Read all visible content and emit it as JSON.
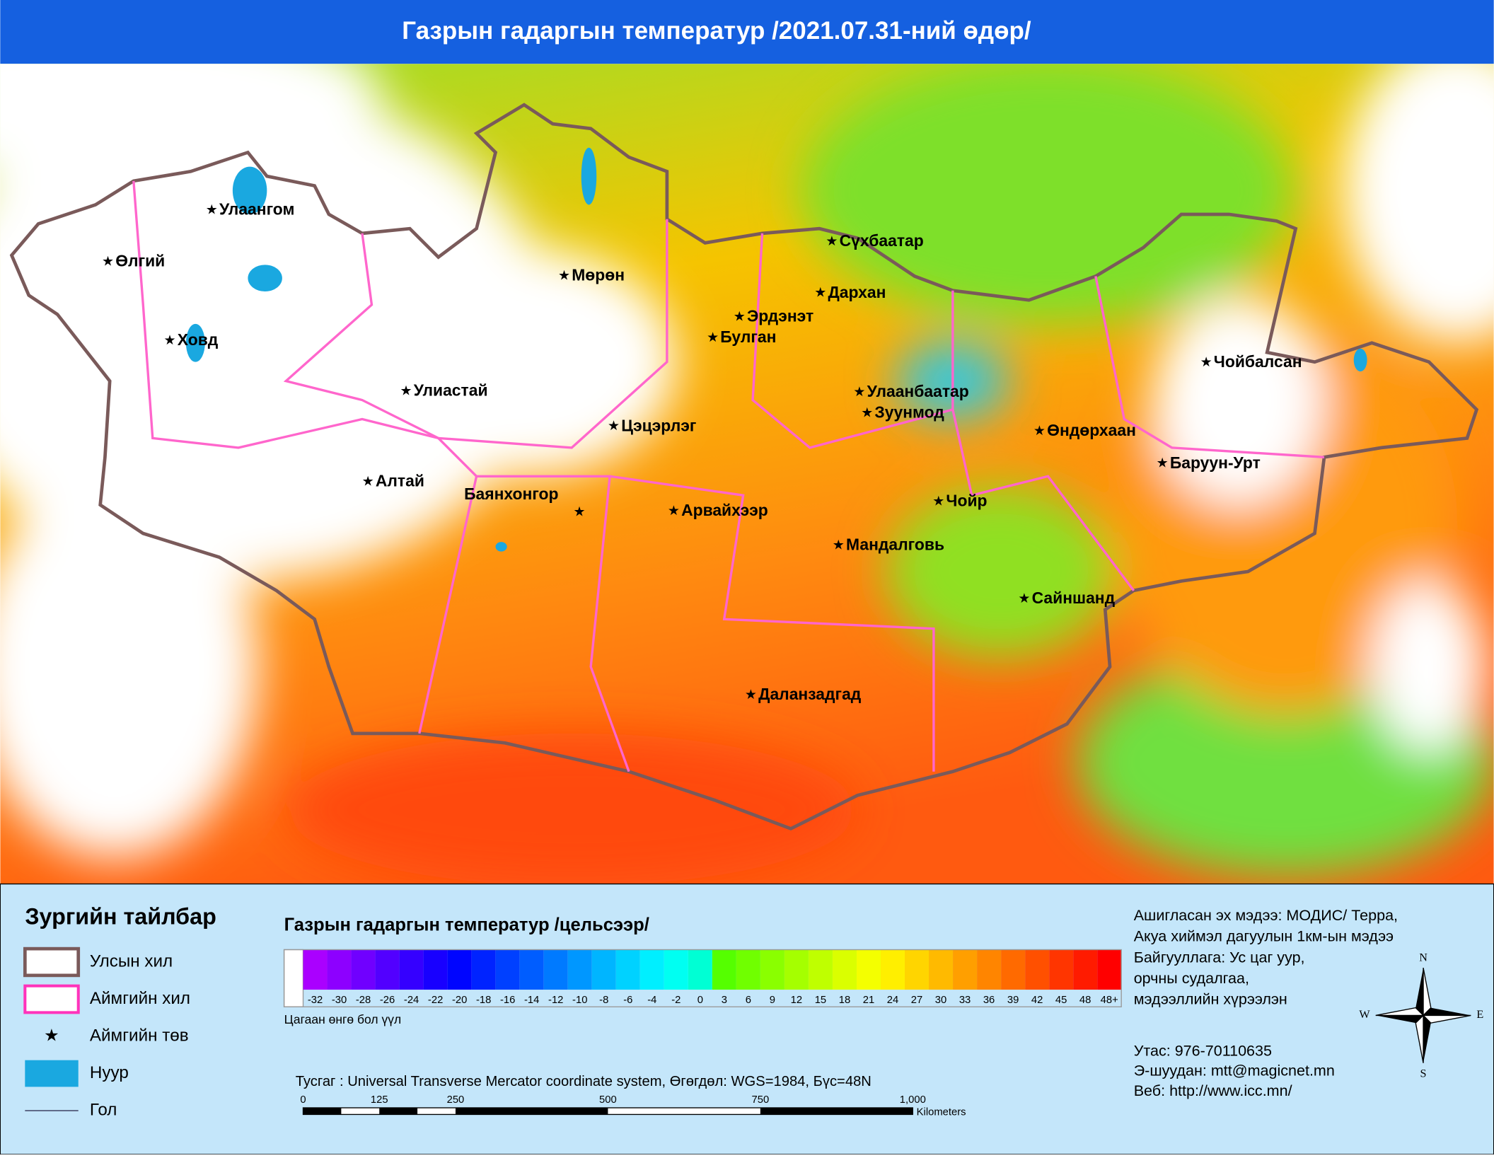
{
  "header": {
    "title": "Газрын гадаргын температур /2021.07.31-ний өдөр/"
  },
  "cities": [
    "Улаангом",
    "Өлгий",
    "Ховд",
    "Улиастай",
    "Алтай",
    "Баянхонгор",
    "Мөрөн",
    "Цэцэрлэг",
    "Арвайхээр",
    "Сүхбаатар",
    "Дархан",
    "Эрдэнэт",
    "Булган",
    "Улаанбаатар",
    "Зуунмод",
    "Чойр",
    "Мандалговь",
    "Даланзадгад",
    "Сайншанд",
    "Өндөрхаан",
    "Чойбалсан",
    "Баруун-Урт"
  ],
  "legend": {
    "title": "Зургийн тайлбар",
    "items": [
      "Улсын хил",
      "Аймгийн хил",
      "Аймгийн төв",
      "Нуур",
      "Гол"
    ]
  },
  "colorbar": {
    "title": "Газрын гадаргын температур /цельсээр/",
    "labels": [
      "-32",
      "-30",
      "-28",
      "-26",
      "-24",
      "-22",
      "-20",
      "-18",
      "-16",
      "-14",
      "-12",
      "-10",
      "-8",
      "-6",
      "-4",
      "-2",
      "0",
      "3",
      "6",
      "9",
      "12",
      "15",
      "18",
      "21",
      "24",
      "27",
      "30",
      "33",
      "36",
      "39",
      "42",
      "45",
      "48",
      "48+"
    ],
    "note": "Цагаан өнгө бол үүл"
  },
  "projection": "Тусгаг : Universal Transverse Mercator coordinate system, Өгөгдөл: WGS=1984, Бүс=48N",
  "scalebar": {
    "labels": [
      "0",
      "125",
      "250",
      "500",
      "750",
      "1,000"
    ],
    "unit": "Kilometers"
  },
  "source": [
    "Ашигласан эх мэдээ: МОДИС/ Терра,",
    "Акуа хиймэл дагуулын 1км-ын мэдээ",
    "Байгууллага: Ус цаг уур,",
    "орчны судалгаа,",
    " мэдээллийн хүрээлэн"
  ],
  "contacts": [
    "Утас:   976-70110635",
    "Э-шуудан:  mtt@magicnet.mn",
    "Веб:  http://www.icc.mn/"
  ],
  "compass": [
    "N",
    "E",
    "S",
    "W"
  ]
}
